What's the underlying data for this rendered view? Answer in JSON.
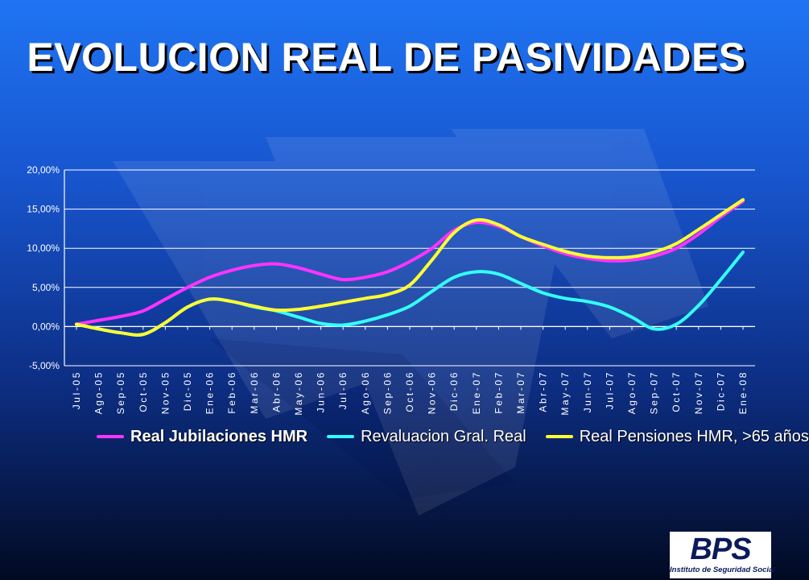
{
  "slide": {
    "title": "EVOLUCION REAL DE PASIVIDADES"
  },
  "logo": {
    "text": "BPS",
    "subtitle": "Instituto de Seguridad Social",
    "color": "#0a1a5c"
  },
  "chart_data": {
    "type": "line",
    "title": "",
    "xlabel": "",
    "ylabel": "",
    "ylim": [
      -5,
      20
    ],
    "yticks": [
      -5,
      0,
      5,
      10,
      15,
      20
    ],
    "ytick_labels": [
      "-5,00%",
      "0,00%",
      "5,00%",
      "10,00%",
      "15,00%",
      "20,00%"
    ],
    "grid": true,
    "legend_position": "bottom",
    "categories": [
      "Jul-05",
      "Ago-05",
      "Sep-05",
      "Oct-05",
      "Nov-05",
      "Dic-05",
      "Ene-06",
      "Feb-06",
      "Mar-06",
      "Abr-06",
      "May-06",
      "Jun-06",
      "Jul-06",
      "Ago-06",
      "Sep-06",
      "Oct-06",
      "Nov-06",
      "Dic-06",
      "Ene-07",
      "Feb-07",
      "Mar-07",
      "Abr-07",
      "May-07",
      "Jun-07",
      "Jul-07",
      "Ago-07",
      "Sep-07",
      "Oct-07",
      "Nov-07",
      "Dic-07",
      "Ene-08"
    ],
    "series": [
      {
        "name": "Real Jubilaciones HMR",
        "color": "#ff33ff",
        "values": [
          0.3,
          0.8,
          1.3,
          2.0,
          3.5,
          5.0,
          6.3,
          7.2,
          7.8,
          8.0,
          7.5,
          6.7,
          6.0,
          6.3,
          7.0,
          8.3,
          10.0,
          12.3,
          13.3,
          12.8,
          11.5,
          10.3,
          9.3,
          8.7,
          8.4,
          8.5,
          9.0,
          10.0,
          11.8,
          14.0,
          16.0
        ],
        "legend_bold": true
      },
      {
        "name": "Revaluacion Gral. Real",
        "color": "#33ffff",
        "values": [
          0.3,
          -0.3,
          -0.8,
          -1.0,
          0.5,
          2.5,
          3.5,
          3.2,
          2.5,
          2.0,
          1.2,
          0.4,
          0.2,
          0.7,
          1.5,
          2.6,
          4.5,
          6.3,
          7.0,
          6.7,
          5.5,
          4.3,
          3.6,
          3.2,
          2.5,
          1.2,
          -0.3,
          0.3,
          2.7,
          6.0,
          9.5
        ],
        "legend_bold": false
      },
      {
        "name": "Real Pensiones HMR, >65 años",
        "color": "#ffff33",
        "values": [
          0.3,
          -0.3,
          -0.8,
          -1.0,
          0.5,
          2.5,
          3.5,
          3.2,
          2.6,
          2.1,
          2.2,
          2.6,
          3.1,
          3.6,
          4.1,
          5.3,
          8.5,
          12.0,
          13.6,
          13.0,
          11.5,
          10.5,
          9.6,
          9.0,
          8.8,
          8.9,
          9.5,
          10.6,
          12.4,
          14.3,
          16.2
        ],
        "legend_bold": false
      }
    ]
  }
}
